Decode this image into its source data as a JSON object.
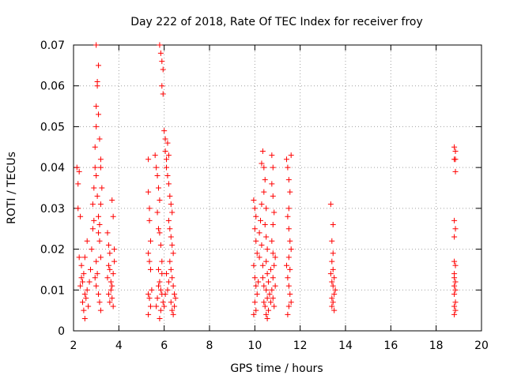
{
  "chart_data": {
    "type": "scatter",
    "title": "Day 222 of 2018, Rate Of TEC Index for receiver froy",
    "xlabel": "GPS time / hours",
    "ylabel": "ROTI / TECUs",
    "xlim": [
      2,
      20
    ],
    "ylim": [
      0,
      0.07
    ],
    "xticks": [
      {
        "value": 2,
        "label": "2"
      },
      {
        "value": 4,
        "label": "4"
      },
      {
        "value": 6,
        "label": "6"
      },
      {
        "value": 8,
        "label": "8"
      },
      {
        "value": 10,
        "label": "10"
      },
      {
        "value": 12,
        "label": "12"
      },
      {
        "value": 14,
        "label": "14"
      },
      {
        "value": 16,
        "label": "16"
      },
      {
        "value": 18,
        "label": "18"
      },
      {
        "value": 20,
        "label": "20"
      }
    ],
    "yticks": [
      {
        "value": 0,
        "label": "0"
      },
      {
        "value": 0.01,
        "label": "0.01"
      },
      {
        "value": 0.02,
        "label": "0.02"
      },
      {
        "value": 0.03,
        "label": "0.03"
      },
      {
        "value": 0.04,
        "label": "0.04"
      },
      {
        "value": 0.05,
        "label": "0.05"
      },
      {
        "value": 0.06,
        "label": "0.06"
      },
      {
        "value": 0.07,
        "label": "0.07"
      }
    ],
    "grid": true,
    "marker": "+",
    "color": "#ff0000",
    "points": [
      [
        2.15,
        0.04
      ],
      [
        2.2,
        0.036
      ],
      [
        2.25,
        0.039
      ],
      [
        2.2,
        0.03
      ],
      [
        2.3,
        0.028
      ],
      [
        2.25,
        0.018
      ],
      [
        2.35,
        0.013
      ],
      [
        2.4,
        0.007
      ],
      [
        2.45,
        0.005
      ],
      [
        2.5,
        0.003
      ],
      [
        2.6,
        0.01
      ],
      [
        2.7,
        0.012
      ],
      [
        2.5,
        0.009
      ],
      [
        2.3,
        0.011
      ],
      [
        2.4,
        0.012
      ],
      [
        2.55,
        0.008
      ],
      [
        2.65,
        0.006
      ],
      [
        2.75,
        0.015
      ],
      [
        2.8,
        0.02
      ],
      [
        2.85,
        0.025
      ],
      [
        2.9,
        0.027
      ],
      [
        2.6,
        0.022
      ],
      [
        2.5,
        0.018
      ],
      [
        2.45,
        0.014
      ],
      [
        2.35,
        0.016
      ],
      [
        2.85,
        0.031
      ],
      [
        2.9,
        0.035
      ],
      [
        2.95,
        0.04
      ],
      [
        2.95,
        0.045
      ],
      [
        3.0,
        0.05
      ],
      [
        3.0,
        0.055
      ],
      [
        3.05,
        0.06
      ],
      [
        3.1,
        0.065
      ],
      [
        3.0,
        0.07
      ],
      [
        3.05,
        0.061
      ],
      [
        3.1,
        0.053
      ],
      [
        3.15,
        0.047
      ],
      [
        3.2,
        0.042
      ],
      [
        3.0,
        0.038
      ],
      [
        3.05,
        0.033
      ],
      [
        3.1,
        0.028
      ],
      [
        3.15,
        0.022
      ],
      [
        3.2,
        0.018
      ],
      [
        3.05,
        0.014
      ],
      [
        3.0,
        0.011
      ],
      [
        3.1,
        0.009
      ],
      [
        3.15,
        0.007
      ],
      [
        3.2,
        0.005
      ],
      [
        2.95,
        0.013
      ],
      [
        3.0,
        0.017
      ],
      [
        3.1,
        0.024
      ],
      [
        3.15,
        0.026
      ],
      [
        3.2,
        0.031
      ],
      [
        3.25,
        0.035
      ],
      [
        3.2,
        0.04
      ],
      [
        3.5,
        0.024
      ],
      [
        3.55,
        0.021
      ],
      [
        3.6,
        0.019
      ],
      [
        3.6,
        0.015
      ],
      [
        3.65,
        0.012
      ],
      [
        3.7,
        0.008
      ],
      [
        3.75,
        0.006
      ],
      [
        3.7,
        0.032
      ],
      [
        3.75,
        0.028
      ],
      [
        3.8,
        0.017
      ],
      [
        3.65,
        0.01
      ],
      [
        3.55,
        0.009
      ],
      [
        3.6,
        0.007
      ],
      [
        3.5,
        0.013
      ],
      [
        3.55,
        0.016
      ],
      [
        3.8,
        0.02
      ],
      [
        3.75,
        0.014
      ],
      [
        3.7,
        0.011
      ],
      [
        5.3,
        0.042
      ],
      [
        5.3,
        0.034
      ],
      [
        5.35,
        0.03
      ],
      [
        5.35,
        0.027
      ],
      [
        5.4,
        0.022
      ],
      [
        5.3,
        0.019
      ],
      [
        5.35,
        0.017
      ],
      [
        5.4,
        0.015
      ],
      [
        5.3,
        0.009
      ],
      [
        5.35,
        0.008
      ],
      [
        5.4,
        0.006
      ],
      [
        5.3,
        0.004
      ],
      [
        5.45,
        0.01
      ],
      [
        5.6,
        0.043
      ],
      [
        5.65,
        0.04
      ],
      [
        5.7,
        0.038
      ],
      [
        5.75,
        0.035
      ],
      [
        5.8,
        0.032
      ],
      [
        5.7,
        0.029
      ],
      [
        5.75,
        0.025
      ],
      [
        5.8,
        0.024
      ],
      [
        5.85,
        0.021
      ],
      [
        5.9,
        0.017
      ],
      [
        5.75,
        0.015
      ],
      [
        5.8,
        0.012
      ],
      [
        5.85,
        0.01
      ],
      [
        5.7,
        0.008
      ],
      [
        5.65,
        0.006
      ],
      [
        5.9,
        0.009
      ],
      [
        5.95,
        0.007
      ],
      [
        5.85,
        0.005
      ],
      [
        5.8,
        0.003
      ],
      [
        5.75,
        0.011
      ],
      [
        5.9,
        0.014
      ],
      [
        5.8,
        0.07
      ],
      [
        5.85,
        0.068
      ],
      [
        5.9,
        0.066
      ],
      [
        5.95,
        0.064
      ],
      [
        5.9,
        0.06
      ],
      [
        5.95,
        0.058
      ],
      [
        6.0,
        0.049
      ],
      [
        6.05,
        0.047
      ],
      [
        6.05,
        0.044
      ],
      [
        6.1,
        0.042
      ],
      [
        6.15,
        0.046
      ],
      [
        6.2,
        0.043
      ],
      [
        6.1,
        0.04
      ],
      [
        6.15,
        0.038
      ],
      [
        6.2,
        0.036
      ],
      [
        6.25,
        0.033
      ],
      [
        6.3,
        0.031
      ],
      [
        6.35,
        0.029
      ],
      [
        6.2,
        0.027
      ],
      [
        6.25,
        0.025
      ],
      [
        6.3,
        0.023
      ],
      [
        6.35,
        0.021
      ],
      [
        6.4,
        0.019
      ],
      [
        6.25,
        0.017
      ],
      [
        6.3,
        0.015
      ],
      [
        6.35,
        0.013
      ],
      [
        6.4,
        0.011
      ],
      [
        6.45,
        0.009
      ],
      [
        6.3,
        0.007
      ],
      [
        6.35,
        0.005
      ],
      [
        6.4,
        0.004
      ],
      [
        6.45,
        0.006
      ],
      [
        6.5,
        0.008
      ],
      [
        6.15,
        0.01
      ],
      [
        6.2,
        0.012
      ],
      [
        6.1,
        0.014
      ],
      [
        6.05,
        0.009
      ],
      [
        6.0,
        0.006
      ],
      [
        9.95,
        0.032
      ],
      [
        10.0,
        0.03
      ],
      [
        10.05,
        0.028
      ],
      [
        10.0,
        0.025
      ],
      [
        10.05,
        0.022
      ],
      [
        10.1,
        0.019
      ],
      [
        9.95,
        0.016
      ],
      [
        10.0,
        0.013
      ],
      [
        10.05,
        0.011
      ],
      [
        10.1,
        0.009
      ],
      [
        10.0,
        0.007
      ],
      [
        10.05,
        0.005
      ],
      [
        9.95,
        0.004
      ],
      [
        10.15,
        0.012
      ],
      [
        10.2,
        0.018
      ],
      [
        10.2,
        0.024
      ],
      [
        10.25,
        0.027
      ],
      [
        10.3,
        0.031
      ],
      [
        10.3,
        0.041
      ],
      [
        10.35,
        0.044
      ],
      [
        10.4,
        0.04
      ],
      [
        10.45,
        0.037
      ],
      [
        10.4,
        0.034
      ],
      [
        10.5,
        0.03
      ],
      [
        10.45,
        0.026
      ],
      [
        10.5,
        0.023
      ],
      [
        10.55,
        0.02
      ],
      [
        10.5,
        0.017
      ],
      [
        10.55,
        0.014
      ],
      [
        10.6,
        0.012
      ],
      [
        10.5,
        0.01
      ],
      [
        10.55,
        0.008
      ],
      [
        10.45,
        0.006
      ],
      [
        10.5,
        0.004
      ],
      [
        10.55,
        0.003
      ],
      [
        10.6,
        0.005
      ],
      [
        10.65,
        0.009
      ],
      [
        10.4,
        0.011
      ],
      [
        10.35,
        0.016
      ],
      [
        10.3,
        0.021
      ],
      [
        10.35,
        0.013
      ],
      [
        10.4,
        0.007
      ],
      [
        10.75,
        0.043
      ],
      [
        10.8,
        0.04
      ],
      [
        10.75,
        0.036
      ],
      [
        10.8,
        0.033
      ],
      [
        10.85,
        0.029
      ],
      [
        10.8,
        0.026
      ],
      [
        10.75,
        0.022
      ],
      [
        10.8,
        0.019
      ],
      [
        10.85,
        0.016
      ],
      [
        10.8,
        0.013
      ],
      [
        10.75,
        0.01
      ],
      [
        10.8,
        0.008
      ],
      [
        10.85,
        0.006
      ],
      [
        10.9,
        0.011
      ],
      [
        10.9,
        0.018
      ],
      [
        10.7,
        0.015
      ],
      [
        10.7,
        0.007
      ],
      [
        11.4,
        0.042
      ],
      [
        11.45,
        0.04
      ],
      [
        11.5,
        0.037
      ],
      [
        11.55,
        0.034
      ],
      [
        11.5,
        0.03
      ],
      [
        11.45,
        0.028
      ],
      [
        11.5,
        0.025
      ],
      [
        11.55,
        0.022
      ],
      [
        11.6,
        0.02
      ],
      [
        11.5,
        0.018
      ],
      [
        11.55,
        0.015
      ],
      [
        11.45,
        0.013
      ],
      [
        11.5,
        0.011
      ],
      [
        11.55,
        0.009
      ],
      [
        11.6,
        0.007
      ],
      [
        11.5,
        0.006
      ],
      [
        11.45,
        0.004
      ],
      [
        11.6,
        0.043
      ],
      [
        11.4,
        0.016
      ],
      [
        13.35,
        0.031
      ],
      [
        13.45,
        0.026
      ],
      [
        13.4,
        0.022
      ],
      [
        13.45,
        0.019
      ],
      [
        13.4,
        0.017
      ],
      [
        13.45,
        0.015
      ],
      [
        13.5,
        0.013
      ],
      [
        13.4,
        0.012
      ],
      [
        13.45,
        0.011
      ],
      [
        13.5,
        0.009
      ],
      [
        13.4,
        0.008
      ],
      [
        13.45,
        0.007
      ],
      [
        13.5,
        0.005
      ],
      [
        13.4,
        0.006
      ],
      [
        13.55,
        0.01
      ],
      [
        13.35,
        0.014
      ],
      [
        18.8,
        0.045
      ],
      [
        18.85,
        0.044
      ],
      [
        18.85,
        0.042
      ],
      [
        18.8,
        0.042
      ],
      [
        18.85,
        0.039
      ],
      [
        18.8,
        0.027
      ],
      [
        18.85,
        0.025
      ],
      [
        18.8,
        0.023
      ],
      [
        18.8,
        0.017
      ],
      [
        18.85,
        0.016
      ],
      [
        18.8,
        0.014
      ],
      [
        18.85,
        0.012
      ],
      [
        18.8,
        0.011
      ],
      [
        18.85,
        0.01
      ],
      [
        18.8,
        0.009
      ],
      [
        18.85,
        0.007
      ],
      [
        18.8,
        0.006
      ],
      [
        18.85,
        0.005
      ],
      [
        18.8,
        0.004
      ],
      [
        18.8,
        0.013
      ]
    ]
  }
}
